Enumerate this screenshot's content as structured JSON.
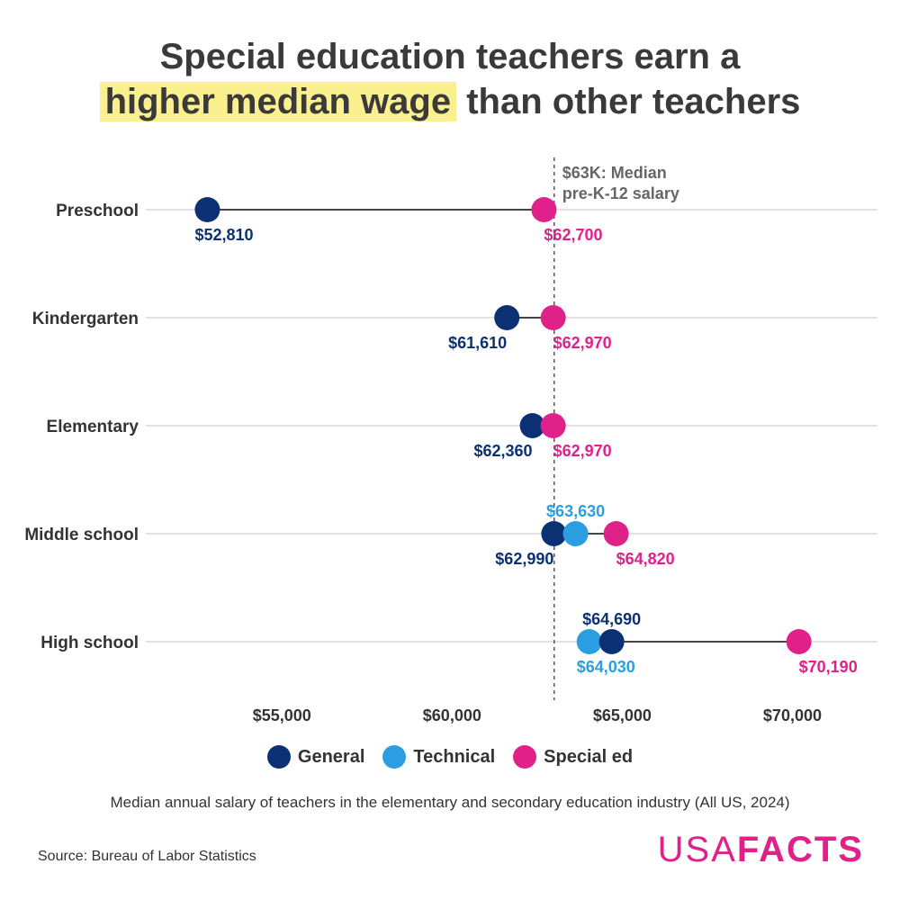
{
  "title": {
    "line1": "Special education teachers earn a",
    "highlight": "higher median wage",
    "line2_rest": " than other teachers"
  },
  "caption": "Median annual salary of teachers in the elementary and secondary education industry (All US, 2024)",
  "source": "Source: Bureau of Labor Statistics",
  "logo": {
    "part1": "USA",
    "part2": "FACTS"
  },
  "legend": [
    {
      "label": "General",
      "color": "#0b3174"
    },
    {
      "label": "Technical",
      "color": "#2a9ee0"
    },
    {
      "label": "Special ed",
      "color": "#e0218a"
    }
  ],
  "chart_data": {
    "type": "dumbbell",
    "categories": [
      "Preschool",
      "Kindergarten",
      "Elementary",
      "Middle school",
      "High school"
    ],
    "xlim": [
      51000,
      72500
    ],
    "xticks": [
      55000,
      60000,
      65000,
      70000
    ],
    "xtick_labels": [
      "$55,000",
      "$60,000",
      "$65,000",
      "$70,000"
    ],
    "grid": true,
    "reference": {
      "value": 63000,
      "label_line1": "$63K: Median",
      "label_line2": "pre-K-12 salary"
    },
    "series": [
      {
        "name": "General",
        "color": "#0b3174",
        "values": [
          52810,
          61610,
          62360,
          62990,
          64690
        ],
        "labels": [
          "$52,810",
          "$61,610",
          "$62,360",
          "$62,990",
          "$64,690"
        ]
      },
      {
        "name": "Technical",
        "color": "#2a9ee0",
        "values": [
          null,
          null,
          null,
          63630,
          64030
        ],
        "labels": [
          null,
          null,
          null,
          "$63,630",
          "$64,030"
        ]
      },
      {
        "name": "Special ed",
        "color": "#e0218a",
        "values": [
          62700,
          62970,
          62970,
          64820,
          70190
        ],
        "labels": [
          "$62,700",
          "$62,970",
          "$62,970",
          "$64,820",
          "$70,190"
        ]
      }
    ]
  }
}
